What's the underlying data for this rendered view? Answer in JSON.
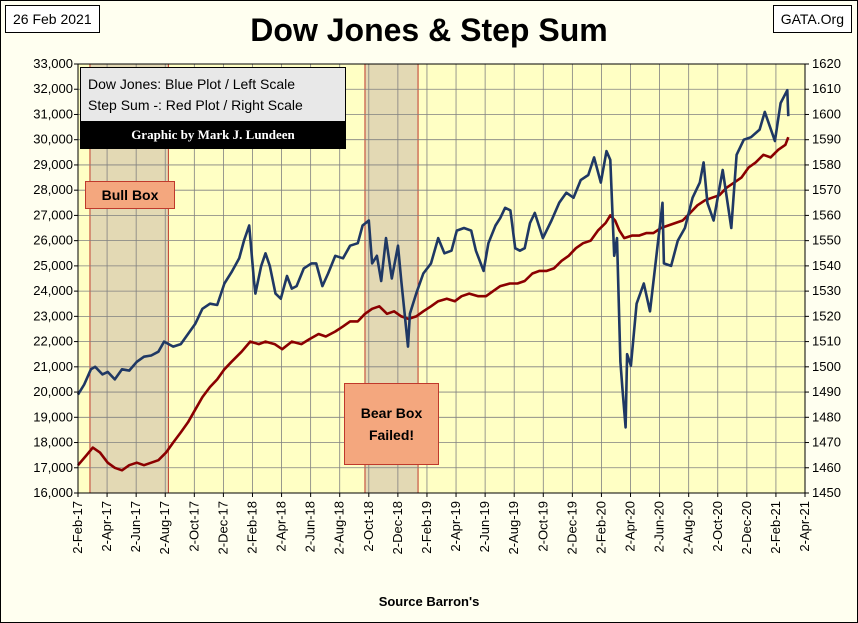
{
  "header": {
    "date": "26 Feb 2021",
    "source": "GATA.Org",
    "title": "Dow Jones & Step Sum"
  },
  "legend": {
    "line1": "Dow Jones: Blue Plot / Left Scale",
    "line2": "Step Sum -: Red Plot / Right Scale",
    "credit": "Graphic by Mark J. Lundeen"
  },
  "annotations": {
    "bull_box": "Bull Box",
    "bear_box_line1": "Bear Box",
    "bear_box_line2": "Failed!"
  },
  "footer": {
    "source": "Source Barron's"
  },
  "colors": {
    "plot_bg": "#ffffc4",
    "shade": "#e3d9b4",
    "dow": "#1f3864",
    "step_sum": "#8b0000",
    "annotation_fill": "#f4a77e",
    "annotation_border": "#c0392b"
  },
  "chart_data": {
    "type": "line",
    "title": "Dow Jones & Step Sum",
    "xlabel": "Source Barron's",
    "x_ticks": [
      "2-Feb-17",
      "2-Apr-17",
      "2-Jun-17",
      "2-Aug-17",
      "2-Oct-17",
      "2-Dec-17",
      "2-Feb-18",
      "2-Apr-18",
      "2-Jun-18",
      "2-Aug-18",
      "2-Oct-18",
      "2-Dec-18",
      "2-Feb-19",
      "2-Apr-19",
      "2-Jun-19",
      "2-Aug-19",
      "2-Oct-19",
      "2-Dec-19",
      "2-Feb-20",
      "2-Apr-20",
      "2-Jun-20",
      "2-Aug-20",
      "2-Oct-20",
      "2-Dec-20",
      "2-Feb-21",
      "2-Apr-21"
    ],
    "xlim": [
      "2017-02-02",
      "2021-04-02"
    ],
    "y_left": {
      "ylim": [
        16000,
        33000
      ],
      "ticks": [
        "16,000",
        "17,000",
        "18,000",
        "19,000",
        "20,000",
        "21,000",
        "22,000",
        "23,000",
        "24,000",
        "25,000",
        "26,000",
        "27,000",
        "28,000",
        "29,000",
        "30,000",
        "31,000",
        "32,000",
        "33,000"
      ]
    },
    "y_right": {
      "ylim": [
        1450,
        1620
      ],
      "ticks": [
        "1450",
        "1460",
        "1470",
        "1480",
        "1490",
        "1500",
        "1510",
        "1520",
        "1530",
        "1540",
        "1550",
        "1560",
        "1570",
        "1580",
        "1590",
        "1600",
        "1610",
        "1620"
      ]
    },
    "shaded_regions": [
      {
        "label": "Bull Box",
        "start": "2017-02-27",
        "end": "2017-08-10"
      },
      {
        "label": "Bear Box Failed!",
        "start": "2018-09-25",
        "end": "2019-01-14"
      }
    ],
    "series": [
      {
        "name": "Dow Jones",
        "axis": "left",
        "points": [
          [
            "2017-02-02",
            19900
          ],
          [
            "2017-02-15",
            20300
          ],
          [
            "2017-03-01",
            20900
          ],
          [
            "2017-03-10",
            21000
          ],
          [
            "2017-03-25",
            20700
          ],
          [
            "2017-04-05",
            20800
          ],
          [
            "2017-04-20",
            20500
          ],
          [
            "2017-05-05",
            20900
          ],
          [
            "2017-05-20",
            20850
          ],
          [
            "2017-06-05",
            21200
          ],
          [
            "2017-06-20",
            21400
          ],
          [
            "2017-07-05",
            21450
          ],
          [
            "2017-07-20",
            21600
          ],
          [
            "2017-08-01",
            22000
          ],
          [
            "2017-08-20",
            21800
          ],
          [
            "2017-09-05",
            21900
          ],
          [
            "2017-09-20",
            22300
          ],
          [
            "2017-10-05",
            22700
          ],
          [
            "2017-10-20",
            23300
          ],
          [
            "2017-11-05",
            23500
          ],
          [
            "2017-11-20",
            23450
          ],
          [
            "2017-12-05",
            24300
          ],
          [
            "2017-12-20",
            24750
          ],
          [
            "2018-01-05",
            25300
          ],
          [
            "2018-01-15",
            26000
          ],
          [
            "2018-01-26",
            26600
          ],
          [
            "2018-02-05",
            24400
          ],
          [
            "2018-02-08",
            23900
          ],
          [
            "2018-02-20",
            25000
          ],
          [
            "2018-03-01",
            25500
          ],
          [
            "2018-03-10",
            25000
          ],
          [
            "2018-03-22",
            23900
          ],
          [
            "2018-04-02",
            23700
          ],
          [
            "2018-04-15",
            24600
          ],
          [
            "2018-04-25",
            24100
          ],
          [
            "2018-05-05",
            24200
          ],
          [
            "2018-05-20",
            24900
          ],
          [
            "2018-06-05",
            25100
          ],
          [
            "2018-06-15",
            25100
          ],
          [
            "2018-06-28",
            24200
          ],
          [
            "2018-07-10",
            24700
          ],
          [
            "2018-07-25",
            25400
          ],
          [
            "2018-08-10",
            25300
          ],
          [
            "2018-08-25",
            25800
          ],
          [
            "2018-09-10",
            25900
          ],
          [
            "2018-09-20",
            26600
          ],
          [
            "2018-10-03",
            26800
          ],
          [
            "2018-10-10",
            25100
          ],
          [
            "2018-10-20",
            25400
          ],
          [
            "2018-10-29",
            24400
          ],
          [
            "2018-11-08",
            26100
          ],
          [
            "2018-11-20",
            24500
          ],
          [
            "2018-12-03",
            25800
          ],
          [
            "2018-12-10",
            24400
          ],
          [
            "2018-12-24",
            21800
          ],
          [
            "2018-12-28",
            23100
          ],
          [
            "2019-01-10",
            23900
          ],
          [
            "2019-01-25",
            24700
          ],
          [
            "2019-02-10",
            25100
          ],
          [
            "2019-02-25",
            26100
          ],
          [
            "2019-03-10",
            25500
          ],
          [
            "2019-03-25",
            25600
          ],
          [
            "2019-04-05",
            26400
          ],
          [
            "2019-04-20",
            26500
          ],
          [
            "2019-05-05",
            26400
          ],
          [
            "2019-05-15",
            25600
          ],
          [
            "2019-05-31",
            24800
          ],
          [
            "2019-06-10",
            25900
          ],
          [
            "2019-06-25",
            26600
          ],
          [
            "2019-07-05",
            26900
          ],
          [
            "2019-07-15",
            27300
          ],
          [
            "2019-07-26",
            27200
          ],
          [
            "2019-08-05",
            25700
          ],
          [
            "2019-08-15",
            25600
          ],
          [
            "2019-08-25",
            25700
          ],
          [
            "2019-09-05",
            26700
          ],
          [
            "2019-09-15",
            27100
          ],
          [
            "2019-10-02",
            26100
          ],
          [
            "2019-10-20",
            26800
          ],
          [
            "2019-11-05",
            27500
          ],
          [
            "2019-11-20",
            27900
          ],
          [
            "2019-12-05",
            27700
          ],
          [
            "2019-12-20",
            28400
          ],
          [
            "2020-01-05",
            28600
          ],
          [
            "2020-01-17",
            29300
          ],
          [
            "2020-01-31",
            28300
          ],
          [
            "2020-02-12",
            29550
          ],
          [
            "2020-02-20",
            29200
          ],
          [
            "2020-02-28",
            25400
          ],
          [
            "2020-03-05",
            26100
          ],
          [
            "2020-03-12",
            21200
          ],
          [
            "2020-03-16",
            20200
          ],
          [
            "2020-03-23",
            18600
          ],
          [
            "2020-03-26",
            21500
          ],
          [
            "2020-04-03",
            21050
          ],
          [
            "2020-04-15",
            23500
          ],
          [
            "2020-04-30",
            24300
          ],
          [
            "2020-05-13",
            23200
          ],
          [
            "2020-05-27",
            25500
          ],
          [
            "2020-06-08",
            27500
          ],
          [
            "2020-06-11",
            25100
          ],
          [
            "2020-06-26",
            25000
          ],
          [
            "2020-07-10",
            26000
          ],
          [
            "2020-07-25",
            26500
          ],
          [
            "2020-08-10",
            27700
          ],
          [
            "2020-08-25",
            28300
          ],
          [
            "2020-09-02",
            29100
          ],
          [
            "2020-09-10",
            27500
          ],
          [
            "2020-09-23",
            26800
          ],
          [
            "2020-10-12",
            28800
          ],
          [
            "2020-10-30",
            26500
          ],
          [
            "2020-11-10",
            29400
          ],
          [
            "2020-11-25",
            30000
          ],
          [
            "2020-12-10",
            30100
          ],
          [
            "2020-12-28",
            30400
          ],
          [
            "2021-01-08",
            31100
          ],
          [
            "2021-01-29",
            29950
          ],
          [
            "2021-02-10",
            31450
          ],
          [
            "2021-02-24",
            31960
          ],
          [
            "2021-02-26",
            30930
          ]
        ]
      },
      {
        "name": "Step Sum",
        "axis": "right",
        "points": [
          [
            "2017-02-02",
            1461
          ],
          [
            "2017-02-20",
            1465
          ],
          [
            "2017-03-05",
            1468
          ],
          [
            "2017-03-20",
            1466
          ],
          [
            "2017-04-05",
            1462
          ],
          [
            "2017-04-20",
            1460
          ],
          [
            "2017-05-05",
            1459
          ],
          [
            "2017-05-20",
            1461
          ],
          [
            "2017-06-05",
            1462
          ],
          [
            "2017-06-20",
            1461
          ],
          [
            "2017-07-05",
            1462
          ],
          [
            "2017-07-20",
            1463
          ],
          [
            "2017-08-05",
            1466
          ],
          [
            "2017-08-20",
            1470
          ],
          [
            "2017-09-05",
            1474
          ],
          [
            "2017-09-20",
            1478
          ],
          [
            "2017-10-05",
            1483
          ],
          [
            "2017-10-20",
            1488
          ],
          [
            "2017-11-05",
            1492
          ],
          [
            "2017-11-20",
            1495
          ],
          [
            "2017-12-05",
            1499
          ],
          [
            "2017-12-20",
            1502
          ],
          [
            "2018-01-10",
            1506
          ],
          [
            "2018-01-28",
            1510
          ],
          [
            "2018-02-15",
            1509
          ],
          [
            "2018-03-01",
            1510
          ],
          [
            "2018-03-20",
            1509
          ],
          [
            "2018-04-05",
            1507
          ],
          [
            "2018-04-25",
            1510
          ],
          [
            "2018-05-15",
            1509
          ],
          [
            "2018-06-01",
            1511
          ],
          [
            "2018-06-20",
            1513
          ],
          [
            "2018-07-05",
            1512
          ],
          [
            "2018-07-25",
            1514
          ],
          [
            "2018-08-10",
            1516
          ],
          [
            "2018-08-25",
            1518
          ],
          [
            "2018-09-10",
            1518
          ],
          [
            "2018-09-25",
            1521
          ],
          [
            "2018-10-10",
            1523
          ],
          [
            "2018-10-25",
            1524
          ],
          [
            "2018-11-10",
            1521
          ],
          [
            "2018-11-25",
            1522
          ],
          [
            "2018-12-10",
            1520
          ],
          [
            "2018-12-25",
            1519
          ],
          [
            "2019-01-10",
            1520
          ],
          [
            "2019-01-25",
            1522
          ],
          [
            "2019-02-10",
            1524
          ],
          [
            "2019-02-25",
            1526
          ],
          [
            "2019-03-15",
            1527
          ],
          [
            "2019-04-01",
            1526
          ],
          [
            "2019-04-15",
            1528
          ],
          [
            "2019-05-01",
            1529
          ],
          [
            "2019-05-20",
            1528
          ],
          [
            "2019-06-05",
            1528
          ],
          [
            "2019-06-20",
            1530
          ],
          [
            "2019-07-05",
            1532
          ],
          [
            "2019-07-25",
            1533
          ],
          [
            "2019-08-10",
            1533
          ],
          [
            "2019-08-25",
            1534
          ],
          [
            "2019-09-10",
            1537
          ],
          [
            "2019-09-25",
            1538
          ],
          [
            "2019-10-10",
            1538
          ],
          [
            "2019-10-25",
            1539
          ],
          [
            "2019-11-10",
            1542
          ],
          [
            "2019-11-25",
            1544
          ],
          [
            "2019-12-10",
            1547
          ],
          [
            "2019-12-25",
            1549
          ],
          [
            "2020-01-10",
            1550
          ],
          [
            "2020-01-25",
            1554
          ],
          [
            "2020-02-10",
            1557
          ],
          [
            "2020-02-20",
            1560
          ],
          [
            "2020-03-01",
            1558
          ],
          [
            "2020-03-10",
            1554
          ],
          [
            "2020-03-20",
            1551
          ],
          [
            "2020-04-05",
            1552
          ],
          [
            "2020-04-20",
            1552
          ],
          [
            "2020-05-05",
            1553
          ],
          [
            "2020-05-20",
            1553
          ],
          [
            "2020-06-05",
            1555
          ],
          [
            "2020-06-20",
            1556
          ],
          [
            "2020-07-05",
            1557
          ],
          [
            "2020-07-20",
            1558
          ],
          [
            "2020-08-05",
            1561
          ],
          [
            "2020-08-20",
            1564
          ],
          [
            "2020-09-05",
            1566
          ],
          [
            "2020-09-20",
            1567
          ],
          [
            "2020-10-05",
            1568
          ],
          [
            "2020-10-20",
            1571
          ],
          [
            "2020-11-05",
            1573
          ],
          [
            "2020-11-20",
            1575
          ],
          [
            "2020-12-05",
            1579
          ],
          [
            "2020-12-20",
            1581
          ],
          [
            "2021-01-05",
            1584
          ],
          [
            "2021-01-20",
            1583
          ],
          [
            "2021-02-05",
            1586
          ],
          [
            "2021-02-20",
            1588
          ],
          [
            "2021-02-26",
            1591
          ]
        ]
      }
    ]
  }
}
